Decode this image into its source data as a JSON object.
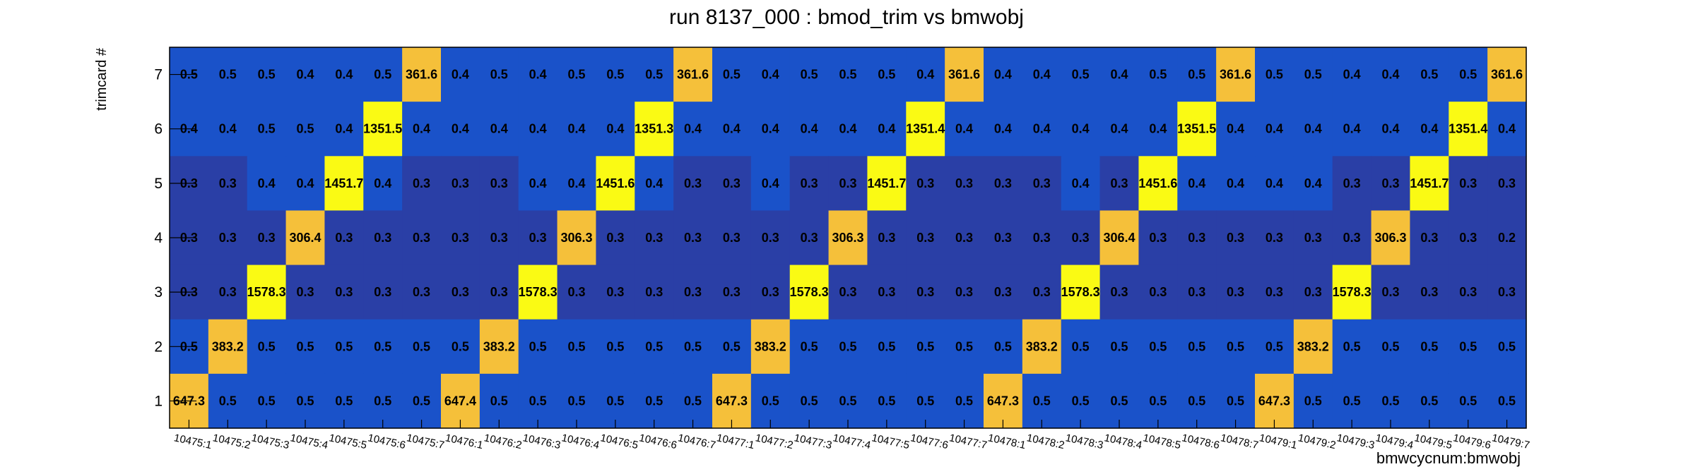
{
  "chart_data": {
    "type": "heatmap",
    "title": "run 8137_000 : bmod_trim vs bmwobj",
    "xlabel": "bmwcycnum:bmwobj",
    "ylabel": "trimcard #",
    "x_categories": [
      "10475:1",
      "10475:2",
      "10475:3",
      "10475:4",
      "10475:5",
      "10475:6",
      "10475:7",
      "10476:1",
      "10476:2",
      "10476:3",
      "10476:4",
      "10476:5",
      "10476:6",
      "10476:7",
      "10477:1",
      "10477:2",
      "10477:3",
      "10477:4",
      "10477:5",
      "10477:6",
      "10477:7",
      "10478:1",
      "10478:2",
      "10478:3",
      "10478:4",
      "10478:5",
      "10478:6",
      "10478:7",
      "10479:1",
      "10479:2",
      "10479:3",
      "10479:4",
      "10479:5",
      "10479:6",
      "10479:7"
    ],
    "y_categories": [
      "1",
      "2",
      "3",
      "4",
      "5",
      "6",
      "7"
    ],
    "rows": [
      {
        "y": "7",
        "values": [
          "0.5",
          "0.5",
          "0.5",
          "0.4",
          "0.4",
          "0.5",
          "361.6",
          "0.4",
          "0.5",
          "0.4",
          "0.5",
          "0.5",
          "0.5",
          "361.6",
          "0.5",
          "0.4",
          "0.5",
          "0.5",
          "0.5",
          "0.4",
          "361.6",
          "0.4",
          "0.4",
          "0.5",
          "0.4",
          "0.5",
          "0.5",
          "361.6",
          "0.5",
          "0.5",
          "0.4",
          "0.4",
          "0.5",
          "0.5",
          "361.6"
        ]
      },
      {
        "y": "6",
        "values": [
          "0.4",
          "0.4",
          "0.5",
          "0.5",
          "0.4",
          "1351.5",
          "0.4",
          "0.4",
          "0.4",
          "0.4",
          "0.4",
          "0.4",
          "1351.3",
          "0.4",
          "0.4",
          "0.4",
          "0.4",
          "0.4",
          "0.4",
          "1351.4",
          "0.4",
          "0.4",
          "0.4",
          "0.4",
          "0.4",
          "0.4",
          "1351.5",
          "0.4",
          "0.4",
          "0.4",
          "0.4",
          "0.4",
          "0.4",
          "1351.4",
          "0.4"
        ]
      },
      {
        "y": "5",
        "values": [
          "0.3",
          "0.3",
          "0.4",
          "0.4",
          "1451.7",
          "0.4",
          "0.3",
          "0.3",
          "0.3",
          "0.4",
          "0.4",
          "1451.6",
          "0.4",
          "0.3",
          "0.3",
          "0.4",
          "0.3",
          "0.3",
          "1451.7",
          "0.3",
          "0.3",
          "0.3",
          "0.3",
          "0.4",
          "0.3",
          "1451.6",
          "0.4",
          "0.4",
          "0.4",
          "0.4",
          "0.3",
          "0.3",
          "1451.7",
          "0.3",
          "0.3"
        ]
      },
      {
        "y": "4",
        "values": [
          "0.3",
          "0.3",
          "0.3",
          "306.4",
          "0.3",
          "0.3",
          "0.3",
          "0.3",
          "0.3",
          "0.3",
          "306.3",
          "0.3",
          "0.3",
          "0.3",
          "0.3",
          "0.3",
          "0.3",
          "306.3",
          "0.3",
          "0.3",
          "0.3",
          "0.3",
          "0.3",
          "0.3",
          "306.4",
          "0.3",
          "0.3",
          "0.3",
          "0.3",
          "0.3",
          "0.3",
          "306.3",
          "0.3",
          "0.3",
          "0.2"
        ]
      },
      {
        "y": "3",
        "values": [
          "0.3",
          "0.3",
          "1578.3",
          "0.3",
          "0.3",
          "0.3",
          "0.3",
          "0.3",
          "0.3",
          "1578.3",
          "0.3",
          "0.3",
          "0.3",
          "0.3",
          "0.3",
          "0.3",
          "1578.3",
          "0.3",
          "0.3",
          "0.3",
          "0.3",
          "0.3",
          "0.3",
          "1578.3",
          "0.3",
          "0.3",
          "0.3",
          "0.3",
          "0.3",
          "0.3",
          "1578.3",
          "0.3",
          "0.3",
          "0.3",
          "0.3"
        ]
      },
      {
        "y": "2",
        "values": [
          "0.5",
          "383.2",
          "0.5",
          "0.5",
          "0.5",
          "0.5",
          "0.5",
          "0.5",
          "383.2",
          "0.5",
          "0.5",
          "0.5",
          "0.5",
          "0.5",
          "0.5",
          "383.2",
          "0.5",
          "0.5",
          "0.5",
          "0.5",
          "0.5",
          "0.5",
          "383.2",
          "0.5",
          "0.5",
          "0.5",
          "0.5",
          "0.5",
          "0.5",
          "383.2",
          "0.5",
          "0.5",
          "0.5",
          "0.5",
          "0.5"
        ]
      },
      {
        "y": "1",
        "values": [
          "647.3",
          "0.5",
          "0.5",
          "0.5",
          "0.5",
          "0.5",
          "0.5",
          "647.4",
          "0.5",
          "0.5",
          "0.5",
          "0.5",
          "0.5",
          "0.5",
          "647.3",
          "0.5",
          "0.5",
          "0.5",
          "0.5",
          "0.5",
          "0.5",
          "647.3",
          "0.5",
          "0.5",
          "0.5",
          "0.5",
          "0.5",
          "0.5",
          "647.3",
          "0.5",
          "0.5",
          "0.5",
          "0.5",
          "0.5",
          "0.5"
        ]
      }
    ],
    "colors": {
      "level_0_2": "#2a3fa6",
      "level_0_3": "#2a3fa6",
      "level_0_4": "#1a52c9",
      "level_0_5": "#1a52c9",
      "mid_high": "#f5c03a",
      "high": "#fafa14"
    },
    "colormap_rule": "values >= 1000 use high; values >= 100 use mid_high; 0.3 and 0.2 use dark blue; 0.4 and 0.5 use blue",
    "grid": false,
    "legend": "none"
  }
}
